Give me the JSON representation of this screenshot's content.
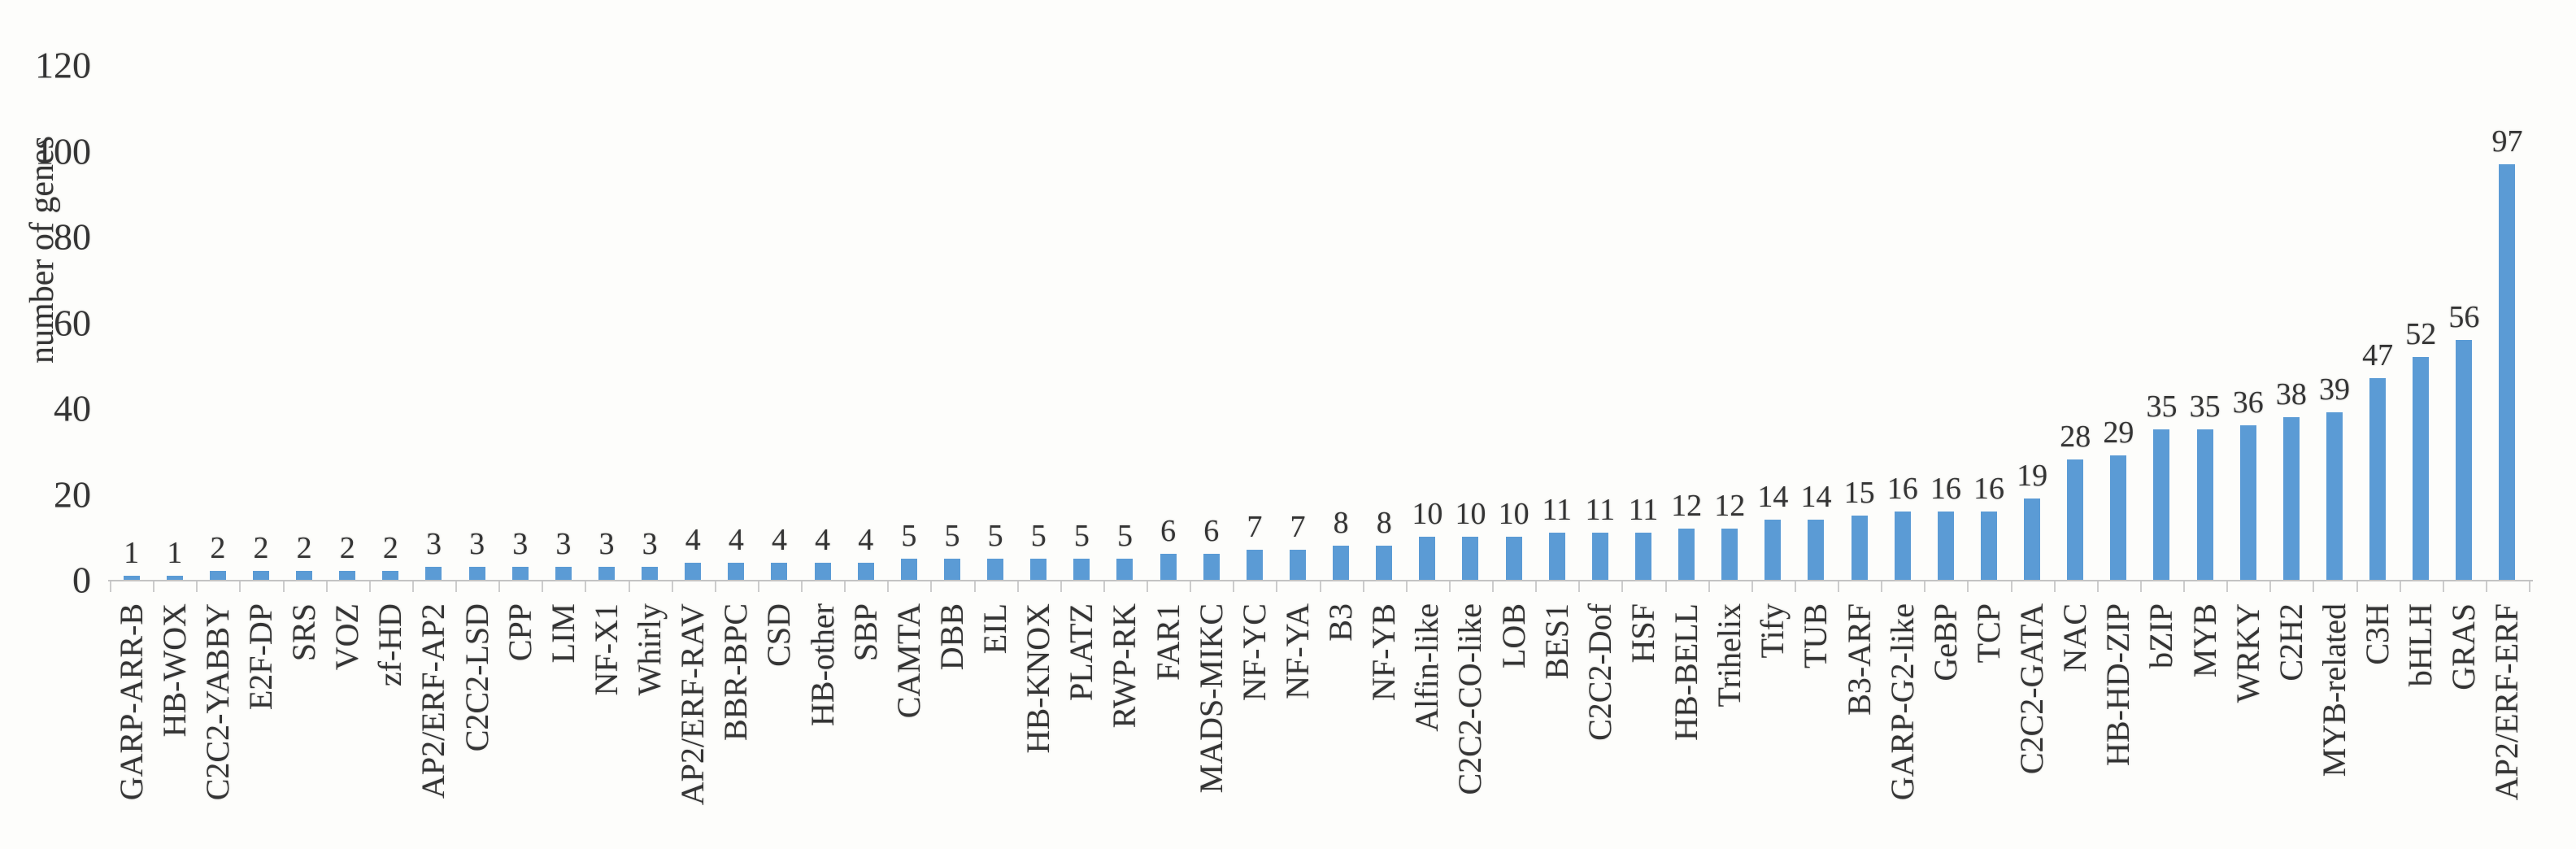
{
  "chart_data": {
    "type": "bar",
    "title": "",
    "xlabel": "",
    "ylabel": "number of genes",
    "ylim": [
      0,
      120
    ],
    "yticks": [
      0,
      20,
      40,
      60,
      80,
      100,
      120
    ],
    "grid": "off",
    "legend_position": "none",
    "data_labels_shown": true,
    "bar_color": "#5b9bd5",
    "axis_color": "#c3c3c3",
    "text_color": "#343434",
    "background_color": "#fdfdfb",
    "categories": [
      "GARP-ARR-B",
      "HB-WOX",
      "C2C2-YABBY",
      "E2F-DP",
      "SRS",
      "VOZ",
      "zf-HD",
      "AP2/ERF-AP2",
      "C2C2-LSD",
      "CPP",
      "LIM",
      "NF-X1",
      "Whirly",
      "AP2/ERF-RAV",
      "BBR-BPC",
      "CSD",
      "HB-other",
      "SBP",
      "CAMTA",
      "DBB",
      "EIL",
      "HB-KNOX",
      "PLATZ",
      "RWP-RK",
      "FAR1",
      "MADS-MIKC",
      "NF-YC",
      "NF-YA",
      "B3",
      "NF-YB",
      "Alfin-like",
      "C2C2-CO-like",
      "LOB",
      "BES1",
      "C2C2-Dof",
      "HSF",
      "HB-BELL",
      "Trihelix",
      "Tify",
      "TUB",
      "B3-ARF",
      "GARP-G2-like",
      "GeBP",
      "TCP",
      "C2C2-GATA",
      "NAC",
      "HB-HD-ZIP",
      "bZIP",
      "MYB",
      "WRKY",
      "C2H2",
      "MYB-related",
      "C3H",
      "bHLH",
      "GRAS",
      "AP2/ERF-ERF"
    ],
    "values": [
      1,
      1,
      2,
      2,
      2,
      2,
      2,
      3,
      3,
      3,
      3,
      3,
      3,
      4,
      4,
      4,
      4,
      4,
      5,
      5,
      5,
      5,
      5,
      5,
      6,
      6,
      7,
      7,
      8,
      8,
      10,
      10,
      10,
      11,
      11,
      11,
      12,
      12,
      14,
      14,
      15,
      16,
      16,
      16,
      19,
      28,
      29,
      35,
      35,
      36,
      38,
      39,
      47,
      52,
      56,
      97
    ]
  }
}
